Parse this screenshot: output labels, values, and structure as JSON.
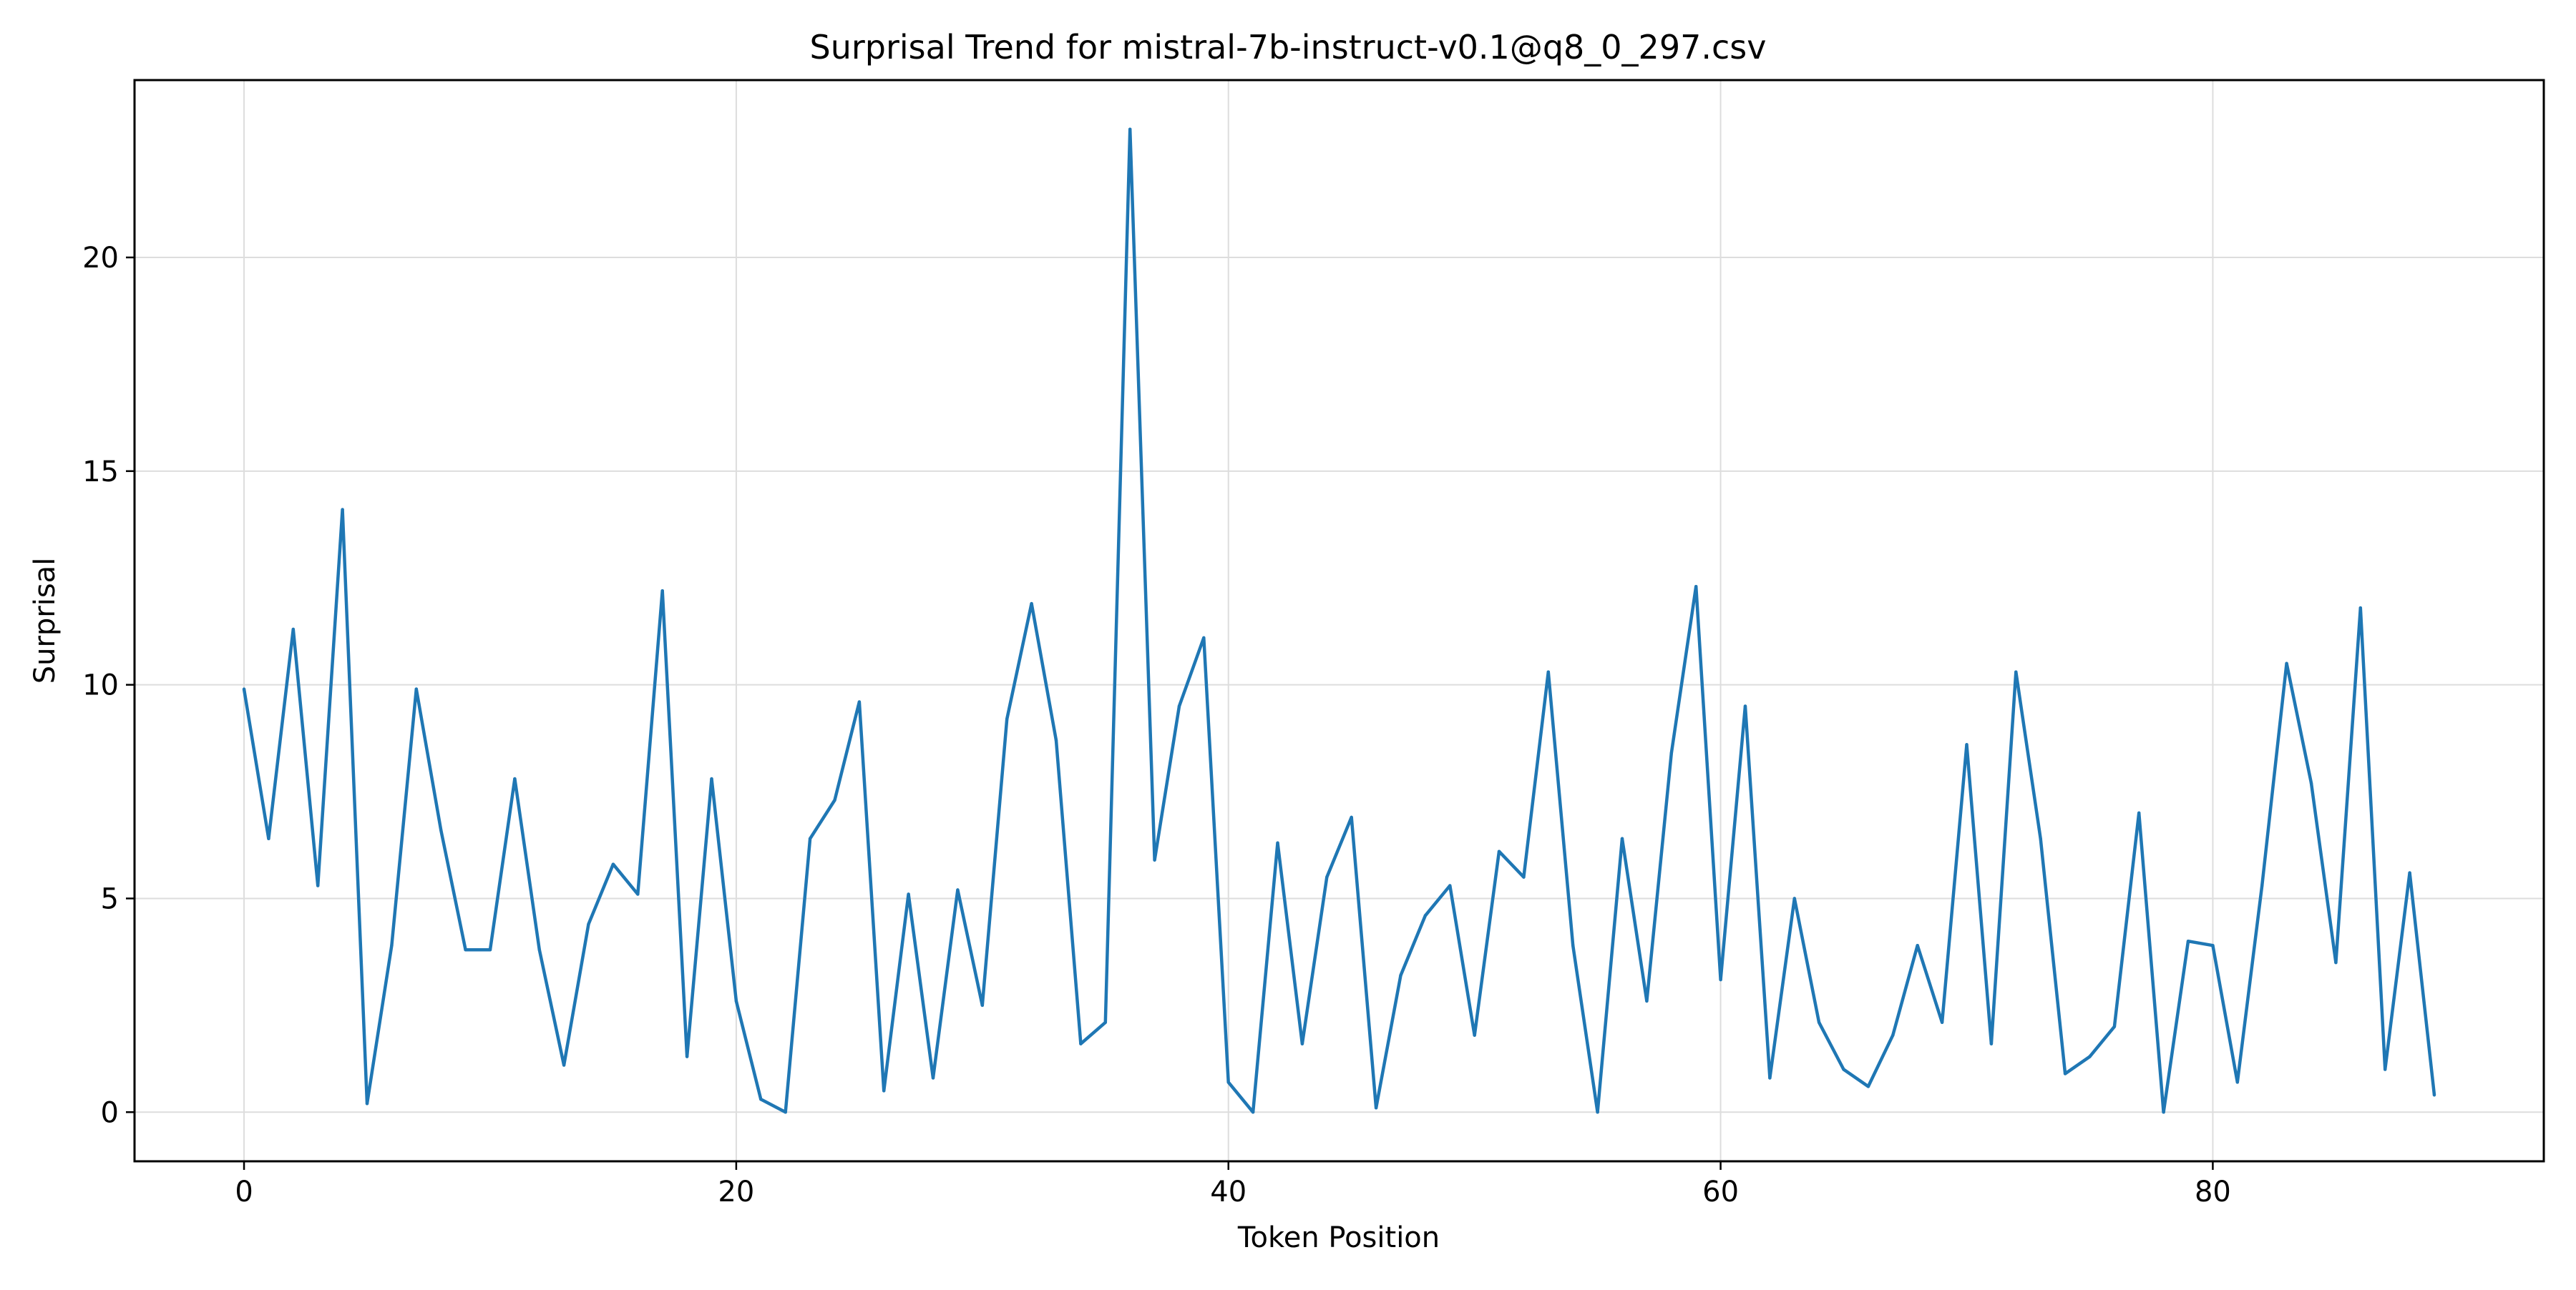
{
  "chart_data": {
    "type": "line",
    "title": "Surprisal Trend for mistral-7b-instruct-v0.1@q8_0_297.csv",
    "xlabel": "Token Position",
    "ylabel": "Surprisal",
    "xlim": [
      -4.45,
      93.45
    ],
    "ylim": [
      -1.15,
      24.15
    ],
    "xticks": [
      0,
      20,
      40,
      60,
      80
    ],
    "yticks": [
      0,
      5,
      10,
      15,
      20
    ],
    "grid": true,
    "legend": "none",
    "series": [
      {
        "color": "#1f77b4",
        "x": [
          0,
          1,
          2,
          3,
          4,
          5,
          6,
          7,
          8,
          9,
          10,
          11,
          12,
          13,
          14,
          15,
          16,
          17,
          18,
          19,
          20,
          21,
          22,
          23,
          24,
          25,
          26,
          27,
          28,
          29,
          30,
          31,
          32,
          33,
          34,
          35,
          36,
          37,
          38,
          39,
          40,
          41,
          42,
          43,
          44,
          45,
          46,
          47,
          48,
          49,
          50,
          51,
          52,
          53,
          54,
          55,
          56,
          57,
          58,
          59,
          60,
          61,
          62,
          63,
          64,
          65,
          66,
          67,
          68,
          69,
          70,
          71,
          72,
          73,
          74,
          75,
          76,
          77,
          78,
          79,
          80,
          81,
          82,
          83,
          84,
          85,
          86,
          87,
          88,
          89
        ],
        "y": [
          9.9,
          6.4,
          11.3,
          5.3,
          14.1,
          0.2,
          3.9,
          9.9,
          6.6,
          3.8,
          3.8,
          7.8,
          3.8,
          1.1,
          4.4,
          5.8,
          5.1,
          12.2,
          1.3,
          7.8,
          2.6,
          0.3,
          0.0,
          6.4,
          7.3,
          9.6,
          0.5,
          5.1,
          0.8,
          5.2,
          2.5,
          9.2,
          11.9,
          8.7,
          1.6,
          2.1,
          23.0,
          5.9,
          9.5,
          11.1,
          0.7,
          0.0,
          6.3,
          1.6,
          5.5,
          6.9,
          0.1,
          3.2,
          4.6,
          5.3,
          1.8,
          6.1,
          5.5,
          10.3,
          3.9,
          0.0,
          6.4,
          2.6,
          8.4,
          12.3,
          3.1,
          9.5,
          0.8,
          5.0,
          2.1,
          1.0,
          0.6,
          1.8,
          3.9,
          2.1,
          8.6,
          1.6,
          10.3,
          6.4,
          0.9,
          1.3,
          2.0,
          7.0,
          0.0,
          4.0,
          3.9,
          0.7,
          5.3,
          10.5,
          7.7,
          3.5,
          11.8,
          1.0,
          5.6,
          0.4
        ]
      }
    ]
  }
}
